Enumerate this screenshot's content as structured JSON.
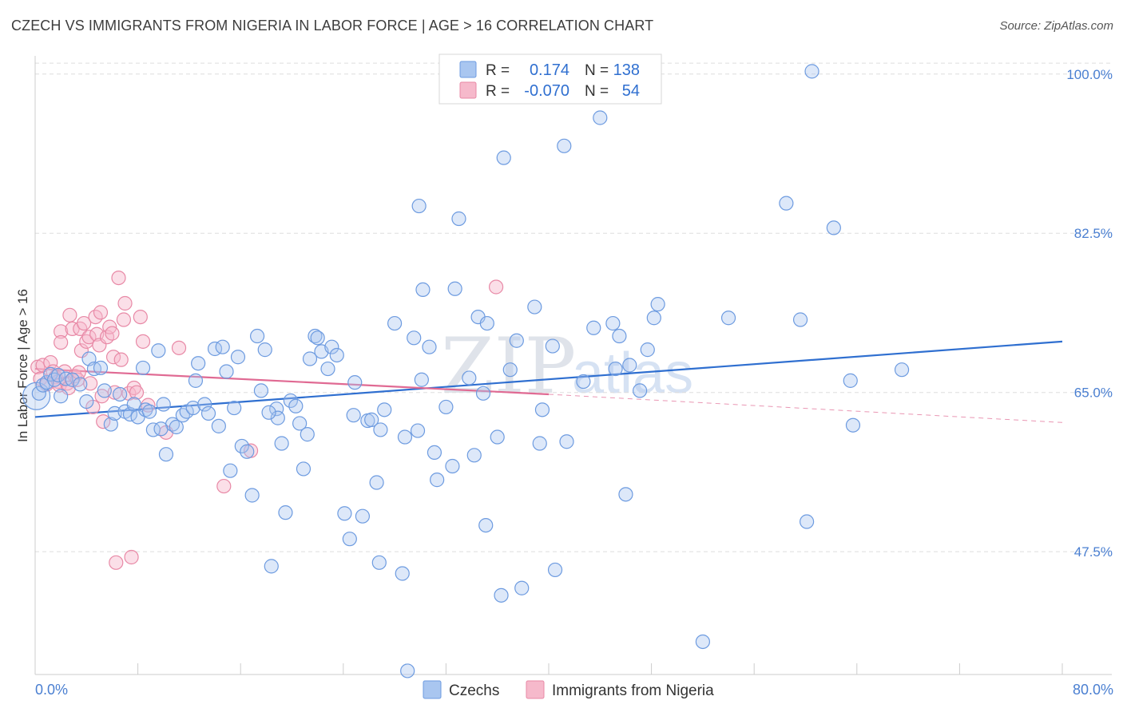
{
  "title": "CZECH VS IMMIGRANTS FROM NIGERIA IN LABOR FORCE | AGE > 16 CORRELATION CHART",
  "source": "Source: ZipAtlas.com",
  "watermark": {
    "zip": "ZIP",
    "atlas": "atlas"
  },
  "colors": {
    "czech_fill": "#a9c6f0",
    "czech_stroke": "#6d9be0",
    "czech_line": "#2f6fd0",
    "nigeria_fill": "#f6b9cb",
    "nigeria_stroke": "#e889a6",
    "nigeria_line": "#e06a93",
    "grid": "#dddddd",
    "tick_text": "#4a7fd1"
  },
  "legend": {
    "rows": [
      {
        "r_label": "R =",
        "r_value": "0.174",
        "n_label": "N =",
        "n_value": "138"
      },
      {
        "r_label": "R =",
        "r_value": "-0.070",
        "n_label": "N =",
        "n_value": "54"
      }
    ]
  },
  "chart_data": {
    "type": "scatter",
    "title": "CZECH VS IMMIGRANTS FROM NIGERIA IN LABOR FORCE | AGE > 16 CORRELATION CHART",
    "xlabel": "",
    "ylabel": "In Labor Force | Age > 16",
    "xlim": [
      0,
      80
    ],
    "ylim": [
      34,
      102
    ],
    "x_ticks": [
      "0.0%",
      "80.0%"
    ],
    "y_ticks": [
      {
        "value": 47.5,
        "label": "47.5%"
      },
      {
        "value": 65.0,
        "label": "65.0%"
      },
      {
        "value": 82.5,
        "label": "82.5%"
      },
      {
        "value": 100.0,
        "label": "100.0%"
      }
    ],
    "grid": true,
    "legend_position": "top-center",
    "series": [
      {
        "name": "Czechs",
        "trend": {
          "x": [
            0,
            80
          ],
          "y": [
            62.3,
            70.6
          ]
        },
        "points": [
          [
            0.3,
            64.9
          ],
          [
            0.6,
            65.8
          ],
          [
            0.9,
            66.1
          ],
          [
            1.2,
            67.0
          ],
          [
            1.5,
            66.4
          ],
          [
            1.8,
            66.9
          ],
          [
            2.0,
            64.6
          ],
          [
            2.4,
            66.5
          ],
          [
            2.9,
            66.4
          ],
          [
            3.5,
            65.9
          ],
          [
            4.0,
            64.0
          ],
          [
            4.2,
            68.7
          ],
          [
            4.6,
            67.6
          ],
          [
            5.1,
            67.7
          ],
          [
            5.4,
            65.2
          ],
          [
            5.9,
            61.5
          ],
          [
            6.2,
            62.7
          ],
          [
            6.6,
            64.8
          ],
          [
            7.0,
            62.9
          ],
          [
            7.4,
            62.6
          ],
          [
            7.7,
            63.7
          ],
          [
            8.0,
            62.3
          ],
          [
            8.4,
            67.7
          ],
          [
            8.6,
            63.1
          ],
          [
            8.9,
            62.9
          ],
          [
            9.2,
            60.9
          ],
          [
            9.6,
            69.6
          ],
          [
            10.0,
            63.7
          ],
          [
            10.2,
            58.2
          ],
          [
            10.7,
            61.5
          ],
          [
            11.0,
            61.2
          ],
          [
            11.5,
            62.5
          ],
          [
            11.8,
            62.9
          ],
          [
            12.3,
            63.3
          ],
          [
            12.5,
            66.3
          ],
          [
            12.7,
            68.2
          ],
          [
            13.2,
            63.7
          ],
          [
            13.5,
            62.7
          ],
          [
            14.0,
            69.8
          ],
          [
            14.3,
            61.3
          ],
          [
            14.6,
            70.0
          ],
          [
            14.9,
            67.3
          ],
          [
            15.2,
            56.4
          ],
          [
            15.5,
            63.3
          ],
          [
            15.8,
            68.9
          ],
          [
            16.1,
            59.1
          ],
          [
            16.5,
            58.5
          ],
          [
            16.9,
            53.7
          ],
          [
            17.3,
            71.2
          ],
          [
            17.6,
            65.2
          ],
          [
            17.9,
            69.7
          ],
          [
            18.4,
            45.9
          ],
          [
            18.8,
            63.2
          ],
          [
            18.9,
            62.2
          ],
          [
            19.2,
            59.4
          ],
          [
            19.5,
            51.8
          ],
          [
            19.9,
            64.1
          ],
          [
            20.3,
            63.5
          ],
          [
            20.6,
            61.6
          ],
          [
            20.9,
            56.6
          ],
          [
            21.2,
            60.4
          ],
          [
            21.4,
            68.7
          ],
          [
            21.8,
            71.2
          ],
          [
            22.0,
            71.0
          ],
          [
            22.3,
            69.5
          ],
          [
            22.8,
            67.6
          ],
          [
            23.1,
            70.0
          ],
          [
            23.5,
            69.1
          ],
          [
            24.1,
            51.7
          ],
          [
            24.5,
            48.9
          ],
          [
            24.8,
            62.5
          ],
          [
            24.9,
            66.1
          ],
          [
            25.5,
            51.4
          ],
          [
            25.9,
            61.9
          ],
          [
            26.2,
            62.0
          ],
          [
            26.6,
            55.1
          ],
          [
            26.8,
            46.3
          ],
          [
            27.2,
            63.1
          ],
          [
            28.0,
            72.6
          ],
          [
            28.6,
            45.1
          ],
          [
            28.8,
            60.1
          ],
          [
            29.0,
            34.4
          ],
          [
            29.5,
            71.0
          ],
          [
            29.8,
            60.8
          ],
          [
            29.9,
            85.5
          ],
          [
            30.2,
            76.3
          ],
          [
            30.7,
            70.0
          ],
          [
            31.1,
            58.4
          ],
          [
            31.3,
            55.4
          ],
          [
            32.0,
            63.4
          ],
          [
            32.5,
            56.9
          ],
          [
            32.7,
            76.4
          ],
          [
            33.0,
            84.1
          ],
          [
            33.8,
            66.6
          ],
          [
            34.2,
            58.1
          ],
          [
            34.5,
            73.3
          ],
          [
            34.9,
            64.9
          ],
          [
            35.1,
            50.4
          ],
          [
            35.2,
            72.6
          ],
          [
            36.0,
            60.1
          ],
          [
            36.3,
            42.7
          ],
          [
            36.5,
            90.8
          ],
          [
            37.0,
            67.5
          ],
          [
            37.5,
            70.7
          ],
          [
            37.9,
            43.5
          ],
          [
            38.9,
            74.4
          ],
          [
            39.3,
            59.4
          ],
          [
            39.5,
            63.1
          ],
          [
            40.3,
            70.1
          ],
          [
            40.5,
            45.5
          ],
          [
            41.2,
            92.1
          ],
          [
            41.4,
            59.6
          ],
          [
            42.7,
            66.2
          ],
          [
            43.5,
            72.1
          ],
          [
            44.0,
            95.2
          ],
          [
            45.0,
            72.6
          ],
          [
            45.2,
            67.6
          ],
          [
            45.5,
            71.2
          ],
          [
            46.0,
            53.8
          ],
          [
            46.3,
            68.0
          ],
          [
            47.1,
            65.2
          ],
          [
            47.7,
            69.7
          ],
          [
            48.2,
            73.2
          ],
          [
            48.5,
            74.7
          ],
          [
            52.0,
            37.6
          ],
          [
            54.0,
            73.2
          ],
          [
            58.5,
            85.8
          ],
          [
            60.1,
            50.8
          ],
          [
            59.6,
            73.0
          ],
          [
            62.2,
            83.1
          ],
          [
            63.5,
            66.3
          ],
          [
            63.7,
            61.4
          ],
          [
            67.5,
            67.5
          ],
          [
            60.5,
            100.3
          ],
          [
            30.1,
            66.4
          ],
          [
            26.9,
            60.9
          ],
          [
            18.2,
            62.8
          ],
          [
            9.8,
            61.0
          ]
        ]
      },
      {
        "name": "Immigrants from Nigeria",
        "trend": {
          "x": [
            0,
            40
          ],
          "y": [
            67.6,
            64.8
          ]
        },
        "trend_dashed": {
          "x": [
            40,
            80
          ],
          "y": [
            64.8,
            61.7
          ]
        },
        "points": [
          [
            0.2,
            67.8
          ],
          [
            0.4,
            66.5
          ],
          [
            0.6,
            68.0
          ],
          [
            0.9,
            65.9
          ],
          [
            1.2,
            68.3
          ],
          [
            1.4,
            67.3
          ],
          [
            1.6,
            66.7
          ],
          [
            1.8,
            66.2
          ],
          [
            1.9,
            65.8
          ],
          [
            2.0,
            71.7
          ],
          [
            2.0,
            70.5
          ],
          [
            2.3,
            67.3
          ],
          [
            2.5,
            66.0
          ],
          [
            2.6,
            65.5
          ],
          [
            2.7,
            73.5
          ],
          [
            2.9,
            72.0
          ],
          [
            3.1,
            66.8
          ],
          [
            3.3,
            66.4
          ],
          [
            3.4,
            67.2
          ],
          [
            3.5,
            72.0
          ],
          [
            3.6,
            69.6
          ],
          [
            3.8,
            72.6
          ],
          [
            4.0,
            70.6
          ],
          [
            4.2,
            71.1
          ],
          [
            4.3,
            66.0
          ],
          [
            4.5,
            63.4
          ],
          [
            4.7,
            73.3
          ],
          [
            4.8,
            71.4
          ],
          [
            5.0,
            70.2
          ],
          [
            5.1,
            73.8
          ],
          [
            5.2,
            64.6
          ],
          [
            5.3,
            61.8
          ],
          [
            5.6,
            71.1
          ],
          [
            5.8,
            72.2
          ],
          [
            6.0,
            71.5
          ],
          [
            6.1,
            68.9
          ],
          [
            6.2,
            65.0
          ],
          [
            6.3,
            46.3
          ],
          [
            6.5,
            77.6
          ],
          [
            6.7,
            68.6
          ],
          [
            6.9,
            73.0
          ],
          [
            7.0,
            74.8
          ],
          [
            7.3,
            64.9
          ],
          [
            7.5,
            46.9
          ],
          [
            7.7,
            65.5
          ],
          [
            7.9,
            65.0
          ],
          [
            8.2,
            73.3
          ],
          [
            8.4,
            70.6
          ],
          [
            8.8,
            63.6
          ],
          [
            10.2,
            60.6
          ],
          [
            11.2,
            69.9
          ],
          [
            14.7,
            54.7
          ],
          [
            16.8,
            58.6
          ],
          [
            35.9,
            76.6
          ]
        ]
      }
    ]
  }
}
